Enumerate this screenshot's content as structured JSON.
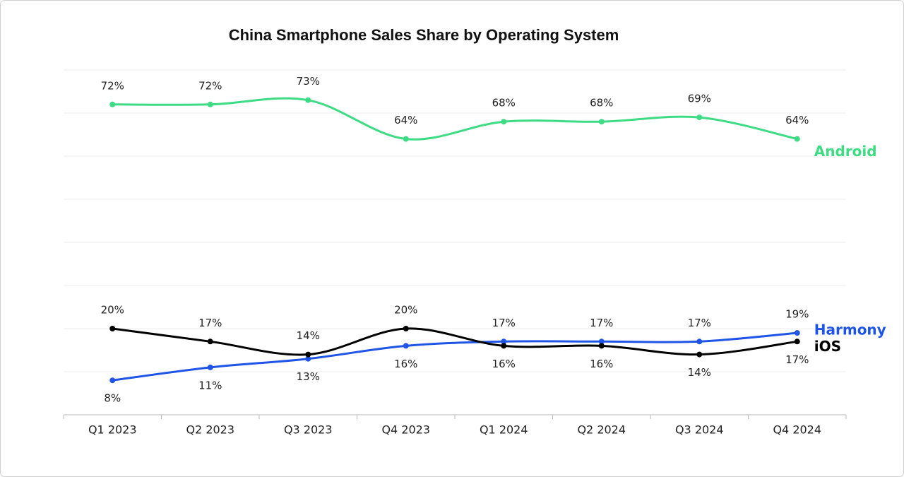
{
  "chart_data": {
    "type": "line",
    "title": "China Smartphone Sales Share by Operating System",
    "categories": [
      "Q1 2023",
      "Q2 2023",
      "Q3 2023",
      "Q4 2023",
      "Q1 2024",
      "Q2 2024",
      "Q3 2024",
      "Q4 2024"
    ],
    "series": [
      {
        "name": "Android",
        "color": "#3ddc84",
        "values": [
          72,
          72,
          73,
          64,
          68,
          68,
          69,
          64
        ],
        "value_labels": [
          "72%",
          "72%",
          "73%",
          "64%",
          "68%",
          "68%",
          "69%",
          "64%"
        ]
      },
      {
        "name": "Harmony",
        "color": "#1f55e6",
        "values": [
          8,
          11,
          13,
          16,
          17,
          17,
          17,
          19
        ],
        "value_labels": [
          "8%",
          "11%",
          "13%",
          "16%",
          "17%",
          "17%",
          "17%",
          "19%"
        ]
      },
      {
        "name": "iOS",
        "color": "#000000",
        "values": [
          20,
          17,
          14,
          20,
          16,
          16,
          14,
          17
        ],
        "value_labels": [
          "20%",
          "17%",
          "14%",
          "20%",
          "16%",
          "16%",
          "14%",
          "17%"
        ]
      }
    ],
    "ylim": [
      0,
      80
    ],
    "yticks": [
      0,
      10,
      20,
      30,
      40,
      50,
      60,
      70,
      80
    ],
    "grid": true
  }
}
